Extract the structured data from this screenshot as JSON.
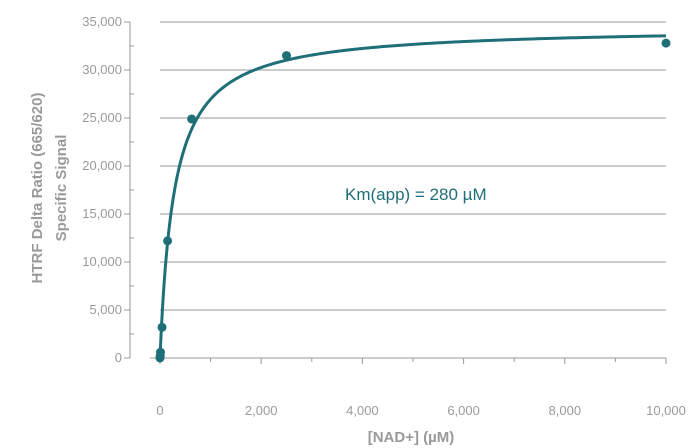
{
  "chart_data": {
    "type": "scatter",
    "title": "",
    "xlabel": "[NAD+] (µM)",
    "ylabel_lines": [
      "HTRF Delta Ratio (665/620)",
      "Specific Signal"
    ],
    "annotation": "Km(app) = 280 µM",
    "xlim": [
      0,
      10000
    ],
    "ylim": [
      0,
      35000
    ],
    "x_ticks": [
      0,
      2000,
      4000,
      6000,
      8000,
      10000
    ],
    "x_tick_labels": [
      "0",
      "2,000",
      "4,000",
      "6,000",
      "8,000",
      "10,000"
    ],
    "y_ticks": [
      0,
      5000,
      10000,
      15000,
      20000,
      25000,
      30000,
      35000
    ],
    "y_tick_labels": [
      "0",
      "5,000",
      "10,000",
      "15,000",
      "20,000",
      "25,000",
      "30,000",
      "35,000"
    ],
    "grid": "horizontal",
    "series": [
      {
        "points": [
          {
            "x": 0,
            "y": 0
          },
          {
            "x": 5,
            "y": 200
          },
          {
            "x": 10,
            "y": 600
          },
          {
            "x": 40,
            "y": 3200
          },
          {
            "x": 150,
            "y": 12200
          },
          {
            "x": 625,
            "y": 24900
          },
          {
            "x": 2500,
            "y": 31500
          },
          {
            "x": 10000,
            "y": 32800
          }
        ],
        "fit": {
          "model": "michaelis-menten",
          "vmax": 34500,
          "km": 280
        }
      }
    ],
    "colors": {
      "series": "#1f6f78",
      "axis": "#9a9a9a",
      "grid": "#9a9a9a"
    }
  }
}
